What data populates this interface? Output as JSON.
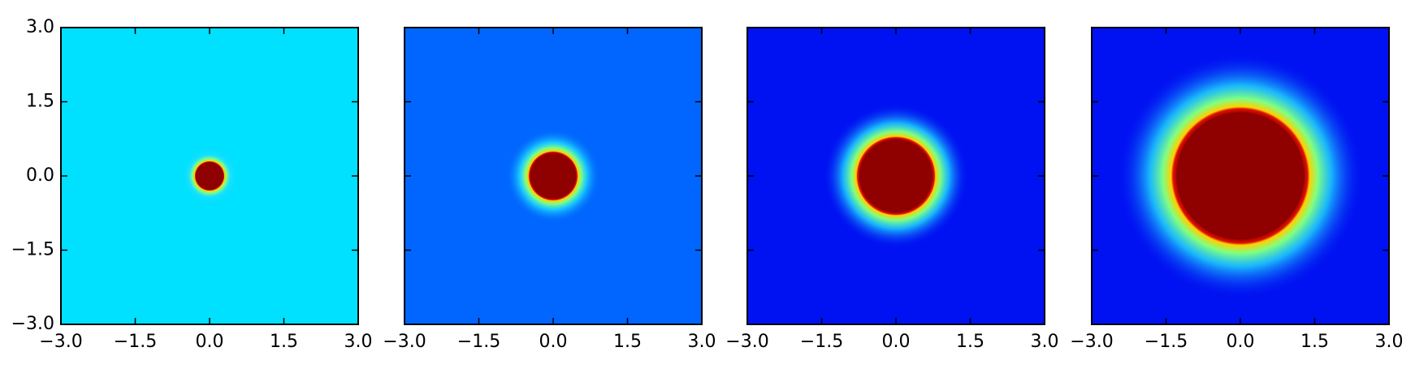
{
  "chart_data": [
    {
      "type": "heatmap",
      "background": "#00e0ff",
      "disk_color": "#8f0000",
      "disk_radius": 0.3,
      "xlim": [
        -3,
        3
      ],
      "ylim": [
        -3,
        3
      ],
      "xticks": [
        {
          "value": -3,
          "label": "−3.0"
        },
        {
          "value": -1.5,
          "label": "−1.5"
        },
        {
          "value": 0,
          "label": "0.0"
        },
        1.5,
        {
          "value": 3,
          "label": "3.0"
        }
      ],
      "yticks": [
        {
          "value": -3,
          "label": "−3.0"
        },
        {
          "value": -1.5,
          "label": "−1.5"
        },
        {
          "value": 0,
          "label": "0.0"
        },
        1.5,
        {
          "value": 3,
          "label": "3.0"
        }
      ],
      "ytick_labels": true
    },
    {
      "type": "heatmap",
      "background": "#0066ff",
      "disk_color": "#8f0000",
      "disk_radius": 0.5,
      "xlim": [
        -3,
        3
      ],
      "ylim": [
        -3,
        3
      ],
      "xticks": [
        {
          "value": -3,
          "label": "−3.0"
        },
        {
          "value": -1.5,
          "label": "−1.5"
        },
        {
          "value": 0,
          "label": "0.0"
        },
        1.5,
        {
          "value": 3,
          "label": "3.0"
        }
      ],
      "yticks": [
        -3,
        -1.5,
        0,
        1.5,
        3
      ],
      "ytick_labels": false
    },
    {
      "type": "heatmap",
      "background": "#0012f2",
      "disk_color": "#8f0000",
      "disk_radius": 0.8,
      "xlim": [
        -3,
        3
      ],
      "ylim": [
        -3,
        3
      ],
      "xticks": [
        {
          "value": -3,
          "label": "−3.0"
        },
        {
          "value": -1.5,
          "label": "−1.5"
        },
        {
          "value": 0,
          "label": "0.0"
        },
        1.5,
        {
          "value": 3,
          "label": "3.0"
        }
      ],
      "yticks": [
        -3,
        -1.5,
        0,
        1.5,
        3
      ],
      "ytick_labels": false
    },
    {
      "type": "heatmap",
      "background": "#0012f2",
      "disk_color": "#8f0000",
      "disk_radius": 1.4,
      "xlim": [
        -3,
        3
      ],
      "ylim": [
        -3,
        3
      ],
      "xticks": [
        {
          "value": -3,
          "label": "−3.0"
        },
        {
          "value": -1.5,
          "label": "−1.5"
        },
        {
          "value": 0,
          "label": "0.0"
        },
        1.5,
        {
          "value": 3,
          "label": "3.0"
        }
      ],
      "yticks": [
        -3,
        -1.5,
        0,
        1.5,
        3
      ],
      "ytick_labels": false
    }
  ]
}
